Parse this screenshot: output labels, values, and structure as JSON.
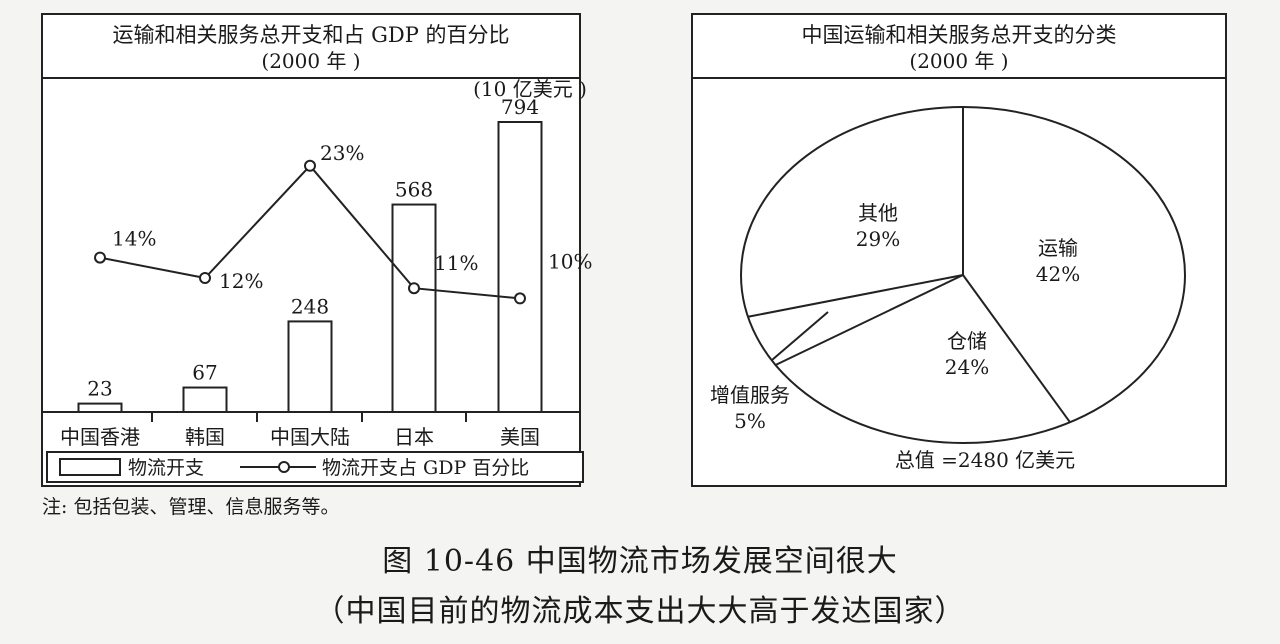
{
  "chart_data": [
    {
      "type": "bar",
      "title": "运输和相关服务总开支和占 GDP 的百分比",
      "subtitle": "(2000 年 )",
      "unit_label": "(10 亿美元 )",
      "categories": [
        "中国香港",
        "韩国",
        "中国大陆",
        "日本",
        "美国"
      ],
      "series": [
        {
          "name": "物流开支",
          "type": "bar",
          "values": [
            23,
            67,
            248,
            568,
            794
          ]
        },
        {
          "name": "物流开支占 GDP 百分比",
          "type": "line",
          "values": [
            14,
            12,
            23,
            11,
            10
          ]
        }
      ],
      "bar_labels": [
        "23",
        "67",
        "248",
        "568",
        "794"
      ],
      "line_labels": [
        "14%",
        "12%",
        "23%",
        "11%",
        "10%"
      ],
      "legend": {
        "bar": "物流开支",
        "line": "物流开支占 GDP 百分比",
        "placement": "bottom"
      }
    },
    {
      "type": "pie",
      "title": "中国运输和相关服务总开支的分类",
      "subtitle": "(2000 年 )",
      "slices": [
        {
          "name": "运输",
          "value": 42,
          "label": "42%"
        },
        {
          "name": "仓储",
          "value": 24,
          "label": "24%"
        },
        {
          "name": "增值服务",
          "value": 5,
          "label": "5%"
        },
        {
          "name": "其他",
          "value": 29,
          "label": "29%"
        }
      ],
      "total_label": "总值 =2480 亿美元"
    }
  ],
  "note": "注:  包括包装、管理、信息服务等。",
  "caption": {
    "line1": "图 10-46    中国物流市场发展空间很大",
    "line2": "（中国目前的物流成本支出大大高于发达国家）"
  }
}
